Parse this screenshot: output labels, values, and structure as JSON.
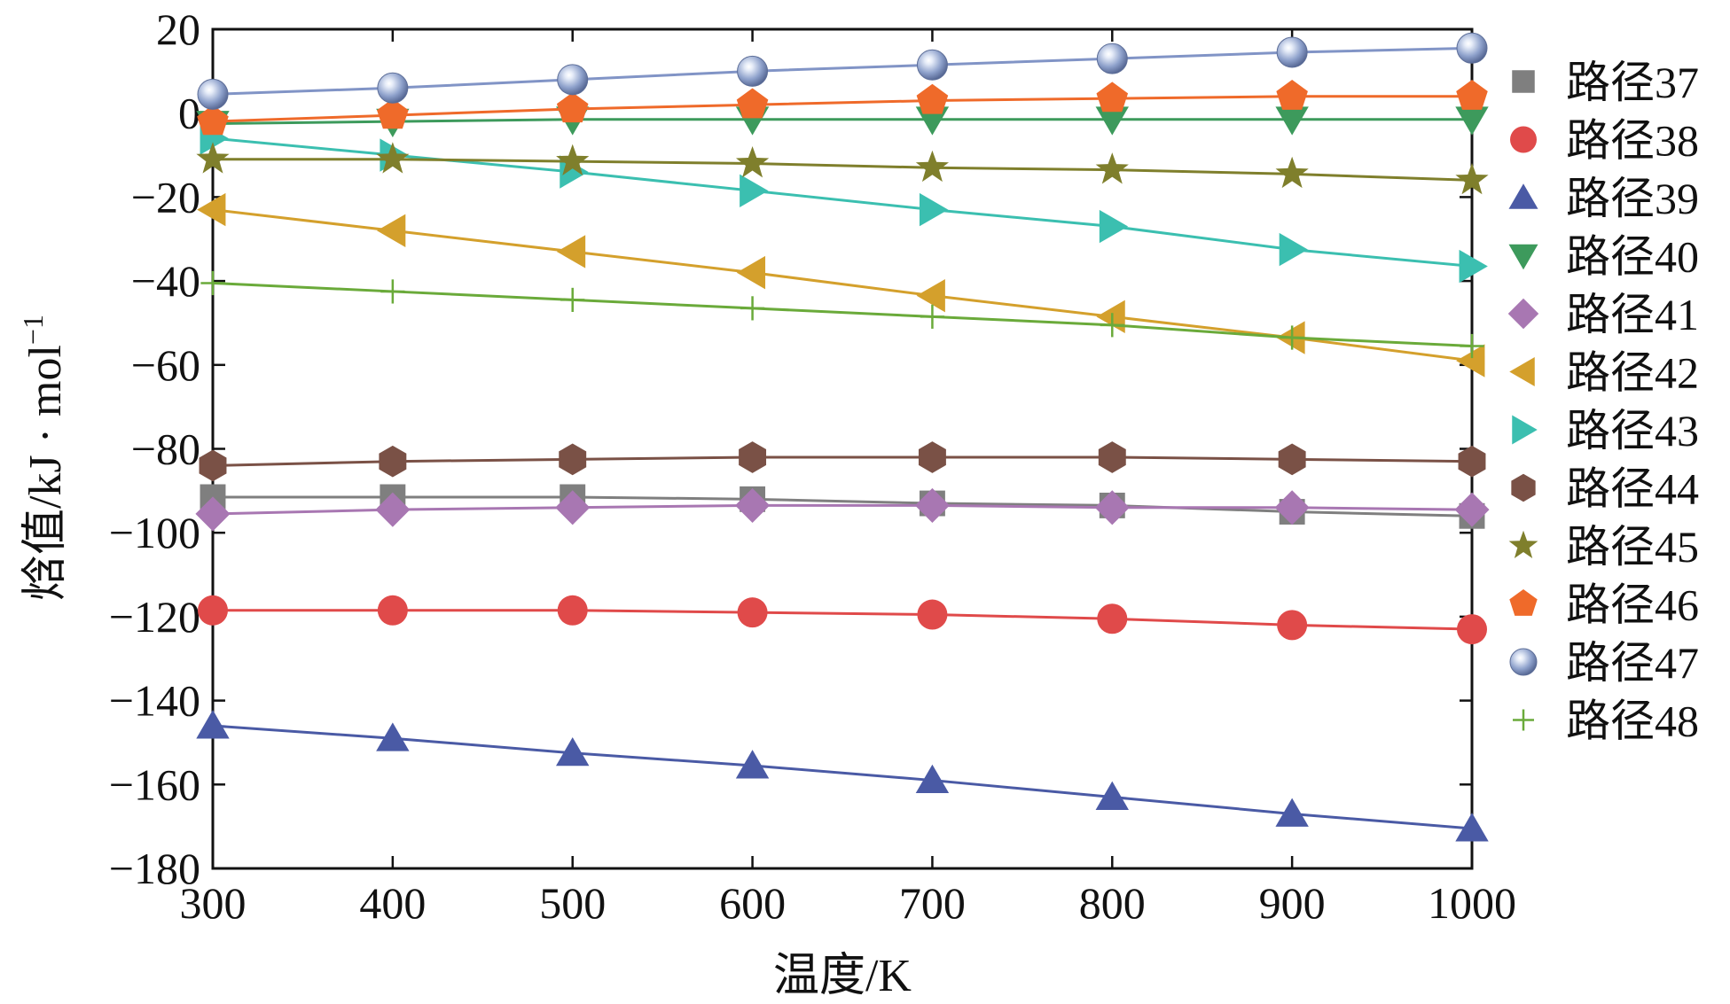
{
  "chart_data": {
    "type": "line",
    "title": "",
    "xlabel": "温度/K",
    "ylabel": "焓值/kJ · mol",
    "ylabel_superscript": "−1",
    "xlim": [
      300,
      1000
    ],
    "ylim": [
      -180,
      20
    ],
    "xticks": [
      300,
      400,
      500,
      600,
      700,
      800,
      900,
      1000
    ],
    "yticks": [
      20,
      0,
      -20,
      -40,
      -60,
      -80,
      -100,
      -120,
      -140,
      -160,
      -180
    ],
    "ytick_labels": [
      "20",
      "0",
      "−20",
      "−40",
      "−60",
      "−80",
      "−100",
      "−120",
      "−140",
      "−160",
      "−180"
    ],
    "x": [
      300,
      400,
      500,
      600,
      700,
      800,
      900,
      1000
    ],
    "legend_position": "outside-right",
    "series": [
      {
        "name": "路径37",
        "marker": "square",
        "color": "#7f7f7f",
        "values": [
          -91.5,
          -91.5,
          -91.5,
          -92,
          -93,
          -93.5,
          -95,
          -96
        ]
      },
      {
        "name": "路径38",
        "marker": "circle",
        "color": "#e04a4a",
        "values": [
          -118.5,
          -118.5,
          -118.5,
          -119,
          -119.5,
          -120.5,
          -122,
          -123
        ]
      },
      {
        "name": "路径39",
        "marker": "triangle-up",
        "color": "#4a5aa5",
        "values": [
          -146,
          -149,
          -152.5,
          -155.5,
          -159,
          -163,
          -167,
          -170.5
        ]
      },
      {
        "name": "路径40",
        "marker": "triangle-down",
        "color": "#3d9a5c",
        "values": [
          -2.5,
          -2,
          -1.5,
          -1.5,
          -1.5,
          -1.5,
          -1.5,
          -1.5
        ]
      },
      {
        "name": "路径41",
        "marker": "diamond",
        "color": "#a877b2",
        "values": [
          -95.5,
          -94.5,
          -94,
          -93.5,
          -93.5,
          -94,
          -94,
          -94.5
        ]
      },
      {
        "name": "路径42",
        "marker": "triangle-left",
        "color": "#d4a02c",
        "values": [
          -23,
          -28,
          -33,
          -38,
          -43.5,
          -48.5,
          -53.5,
          -59
        ]
      },
      {
        "name": "路径43",
        "marker": "triangle-right",
        "color": "#3bbfb0",
        "values": [
          -6,
          -10,
          -14,
          -18.5,
          -23,
          -27,
          -32.5,
          -36.5
        ]
      },
      {
        "name": "路径44",
        "marker": "hexagon",
        "color": "#7a5146",
        "values": [
          -84,
          -83,
          -82.5,
          -82,
          -82,
          -82,
          -82.5,
          -83
        ]
      },
      {
        "name": "路径45",
        "marker": "star",
        "color": "#7f7f2c",
        "values": [
          -11,
          -11,
          -11.5,
          -12,
          -13,
          -13.5,
          -14.5,
          -16
        ]
      },
      {
        "name": "路径46",
        "marker": "pentagon",
        "color": "#ef6a2a",
        "values": [
          -2,
          -0.5,
          1,
          2,
          3,
          3.5,
          4,
          4
        ]
      },
      {
        "name": "路径47",
        "marker": "sphere",
        "color": "#8194c6",
        "values": [
          4.5,
          6,
          8,
          10,
          11.5,
          13,
          14.5,
          15.5
        ]
      },
      {
        "name": "路径48",
        "marker": "plus",
        "color": "#6aaa3a",
        "values": [
          -40.5,
          -42.5,
          -44.5,
          -46.5,
          -48.5,
          -50.5,
          -53.5,
          -55.5
        ]
      }
    ]
  }
}
